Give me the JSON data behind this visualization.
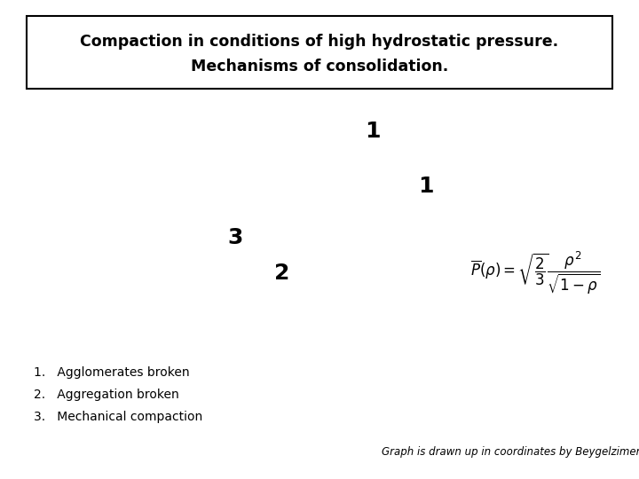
{
  "title_line1": "Compaction in conditions of high hydrostatic pressure.",
  "title_line2": "Mechanisms of consolidation.",
  "label_1_top": "1",
  "label_1_mid": "1",
  "label_3": "3",
  "label_2": "2",
  "list_item1": "1.   Agglomerates broken",
  "list_item2": "2.   Aggregation broken",
  "list_item3": "3.   Mechanical compaction",
  "footer": "Graph is drawn up in coordinates by Beygelzimer Ya.E.",
  "bg_color": "#ffffff",
  "text_color": "#000000"
}
